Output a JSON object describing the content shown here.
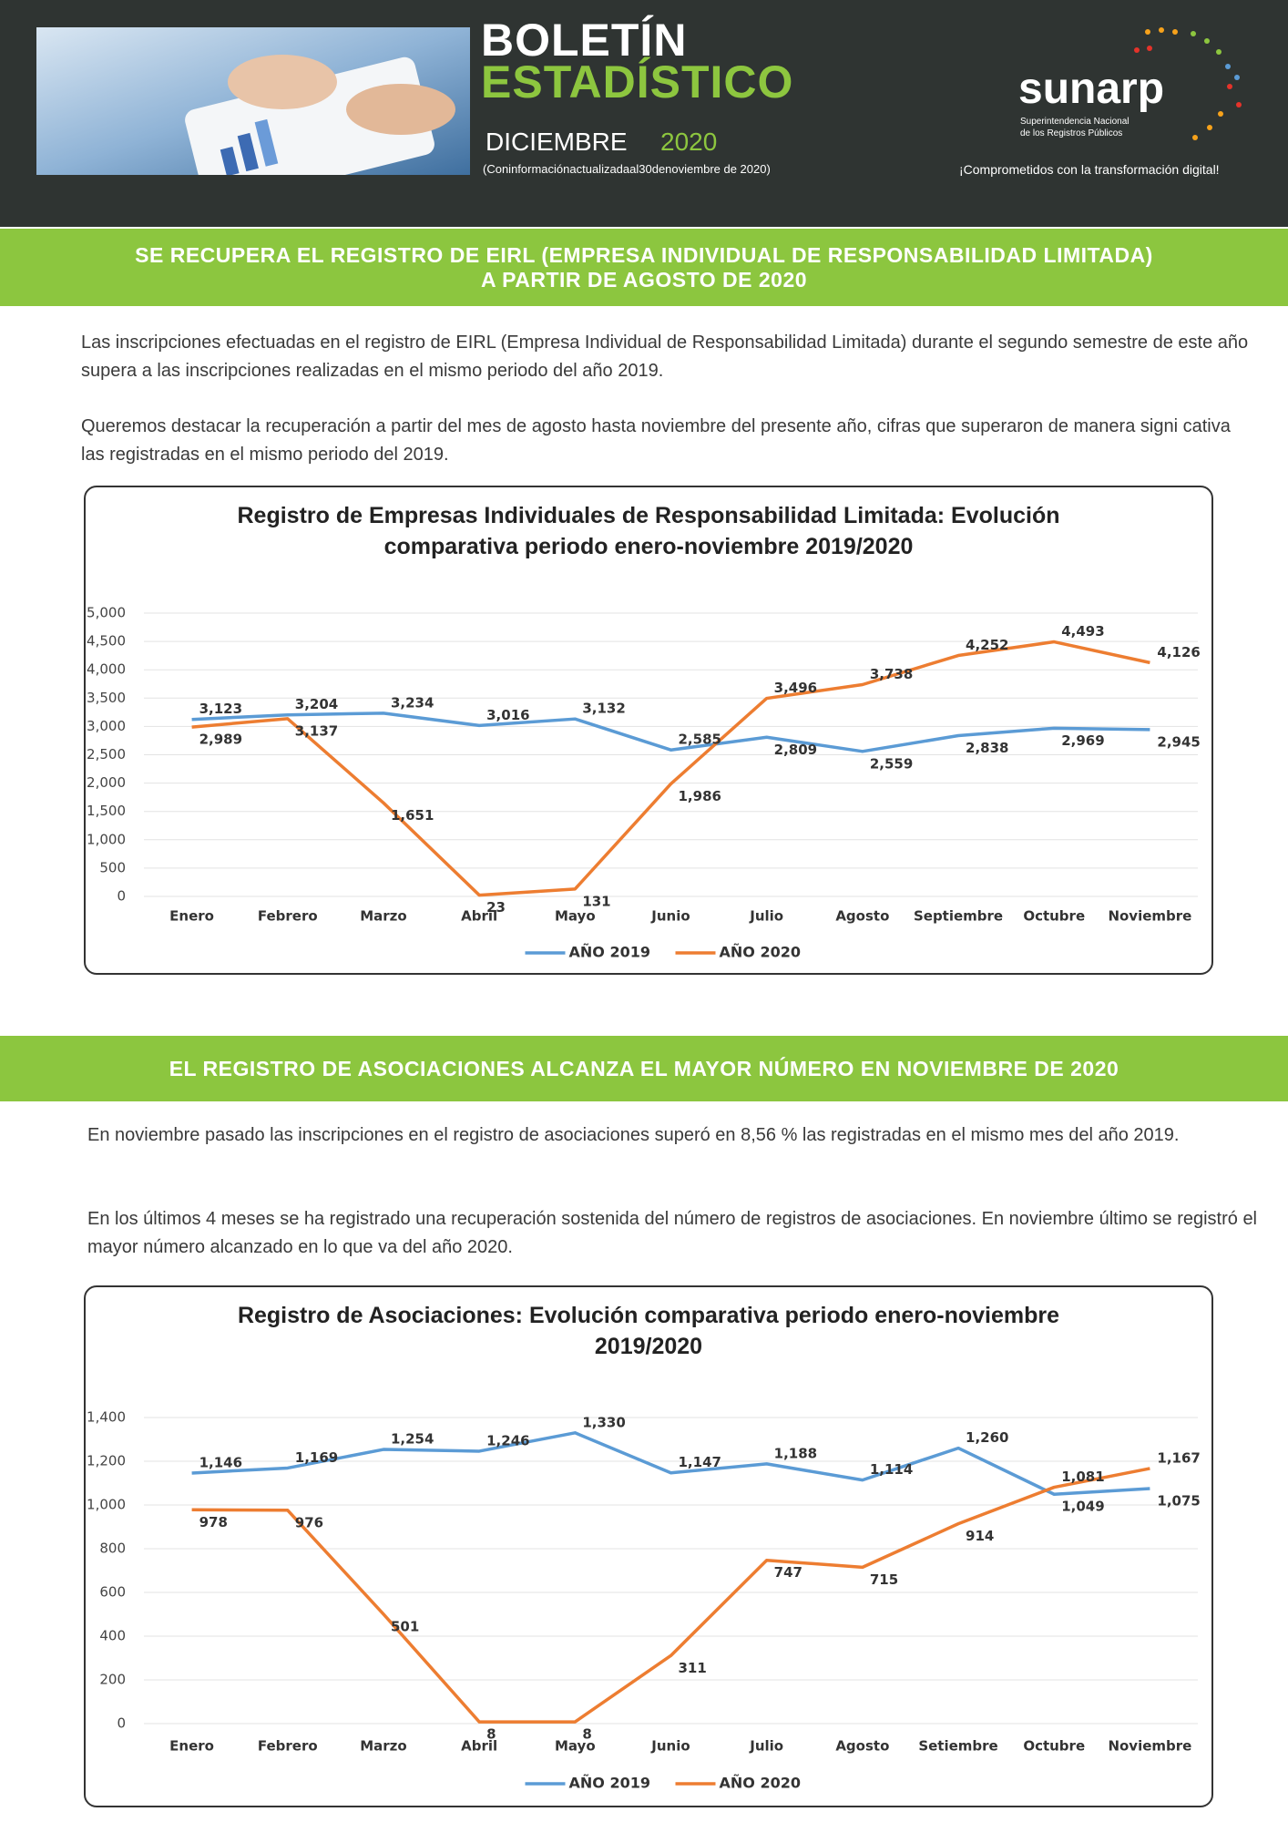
{
  "header": {
    "title_line1": "BOLETÍN",
    "title_line2": "ESTADÍSTICO",
    "month": "DICIEMBRE",
    "year": "2020",
    "note": "(Coninformaciónactualizadaal30denoviembre de 2020)",
    "logo": "sunarp",
    "logo_subtitle_1": "Superintendencia Nacional",
    "logo_subtitle_2": "de los Registros Públicos",
    "slogan": "¡Comprometidos con la transformación digital!"
  },
  "sections": [
    {
      "heading_lines": [
        "SE RECUPERA EL REGISTRO DE EIRL (EMPRESA INDIVIDUAL DE RESPONSABILIDAD LIMITADA)",
        "A PARTIR DE AGOSTO DE 2020"
      ],
      "paragraphs": [
        "Las inscripciones efectuadas en el registro de EIRL (Empresa Individual de Responsabilidad Limitada) durante el segundo semestre de este año supera a las inscripciones realizadas en el mismo periodo del año 2019.",
        "Queremos destacar la recuperación a partir del mes de agosto hasta noviembre del presente año, cifras que superaron de manera signi cativa las registradas en el mismo periodo del 2019."
      ]
    },
    {
      "heading_lines": [
        "EL REGISTRO DE ASOCIACIONES ALCANZA EL MAYOR NÚMERO EN NOVIEMBRE DE 2020"
      ],
      "paragraphs": [
        "En noviembre pasado las inscripciones en el registro de asociaciones superó en 8,56 % las registradas en el mismo mes del año 2019.",
        "En los últimos 4 meses se ha registrado una recuperación sostenida del número de registros de asociaciones. En noviembre último se registró el mayor número alcanzado en lo que va del año 2020."
      ]
    }
  ],
  "chart_data": [
    {
      "type": "line",
      "title": "Registro de Empresas Individuales de Responsabilidad Limitada: Evolución comparativa periodo enero-noviembre 2019/2020",
      "categories": [
        "Enero",
        "Febrero",
        "Marzo",
        "Abril",
        "Mayo",
        "Junio",
        "Julio",
        "Agosto",
        "Septiembre",
        "Octubre",
        "Noviembre"
      ],
      "series": [
        {
          "name": "AÑO 2019",
          "color": "#5b9bd5",
          "values": [
            3123,
            3204,
            3234,
            3016,
            3132,
            2585,
            2809,
            2559,
            2838,
            2969,
            2945
          ],
          "value_labels": [
            "3,123",
            "3,204",
            "3,234",
            "3,016",
            "3,132",
            "2,585",
            "2,809",
            "2,559",
            "2,838",
            "2,969",
            "2,945"
          ]
        },
        {
          "name": "AÑO 2020",
          "color": "#ed7d31",
          "values": [
            2989,
            3137,
            1651,
            23,
            131,
            1986,
            3496,
            3738,
            4252,
            4493,
            4126
          ],
          "value_labels": [
            "2,989",
            "3,137",
            "1,651",
            "23",
            "131",
            "1,986",
            "3,496",
            "3,738",
            "4,252",
            "4,493",
            "4,126"
          ]
        }
      ],
      "ylim": [
        0,
        5000
      ],
      "yticks": [
        0,
        500,
        {
          "value": 1000,
          "label": "1,000"
        },
        {
          "value": 1500,
          "label": "1,500"
        },
        {
          "value": 2000,
          "label": "2,000"
        },
        {
          "value": 2500,
          "label": "2,500"
        },
        {
          "value": 3000,
          "label": "3,000"
        },
        {
          "value": 3500,
          "label": "3,500"
        },
        {
          "value": 4000,
          "label": "4,000"
        },
        {
          "value": 4500,
          "label": "4,500"
        },
        {
          "value": 5000,
          "label": "5,000"
        }
      ],
      "grid": true,
      "legend": "bottom"
    },
    {
      "type": "line",
      "title": "Registro de Asociaciones: Evolución comparativa periodo enero-noviembre 2019/2020",
      "categories": [
        "Enero",
        "Febrero",
        "Marzo",
        "Abril",
        "Mayo",
        "Junio",
        "Julio",
        "Agosto",
        "Setiembre",
        "Octubre",
        "Noviembre"
      ],
      "series": [
        {
          "name": "AÑO 2019",
          "color": "#5b9bd5",
          "values": [
            1146,
            1169,
            1254,
            1246,
            1330,
            1147,
            1188,
            1114,
            1260,
            1049,
            1075
          ],
          "value_labels": [
            "1,146",
            "1,169",
            "1,254",
            "1,246",
            "1,330",
            "1,147",
            "1,188",
            "1,114",
            "1,260",
            "1,049",
            "1,075"
          ]
        },
        {
          "name": "AÑO 2020",
          "color": "#ed7d31",
          "values": [
            978,
            976,
            501,
            8,
            8,
            311,
            747,
            715,
            914,
            1081,
            1167
          ],
          "value_labels": [
            "978",
            "976",
            "501",
            "8",
            "8",
            "311",
            "747",
            "715",
            "914",
            "1,081",
            "1,167"
          ]
        }
      ],
      "ylim": [
        0,
        1400
      ],
      "yticks": [
        0,
        200,
        400,
        600,
        800,
        {
          "value": 1000,
          "label": "1,000"
        },
        {
          "value": 1200,
          "label": "1,200"
        },
        {
          "value": 1400,
          "label": "1,400"
        }
      ],
      "grid": true,
      "legend": "bottom"
    }
  ]
}
